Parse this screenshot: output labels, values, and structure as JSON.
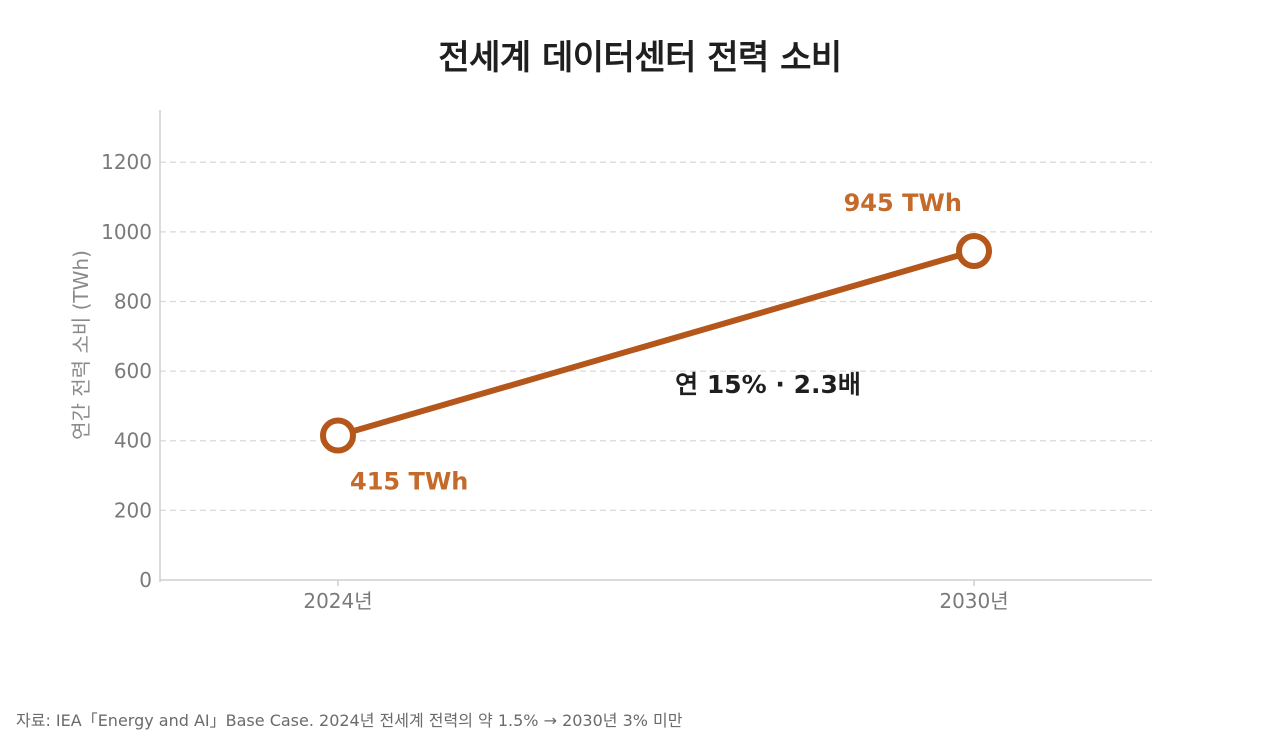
{
  "chart_data": {
    "type": "line",
    "title": "전세계 데이터센터 전력 소비",
    "xlabel": "",
    "ylabel": "연간 전력 소비 (TWh)",
    "categories": [
      "2024년",
      "2030년"
    ],
    "series": [
      {
        "values": [
          415,
          945
        ]
      }
    ],
    "data_labels": [
      "415 TWh",
      "945 TWh"
    ],
    "yticks": [
      0,
      200,
      400,
      600,
      800,
      1000,
      1200
    ],
    "ylim": [
      0,
      1350
    ],
    "grid": true,
    "annotation": "연 15% · 2.3배",
    "line_color": "#b5561a",
    "label_color": "#c46a2a"
  },
  "source_note": "자료: IEA「Energy and AI」Base Case. 2024년 전세계 전력의 약 1.5% → 2030년 3% 미만"
}
